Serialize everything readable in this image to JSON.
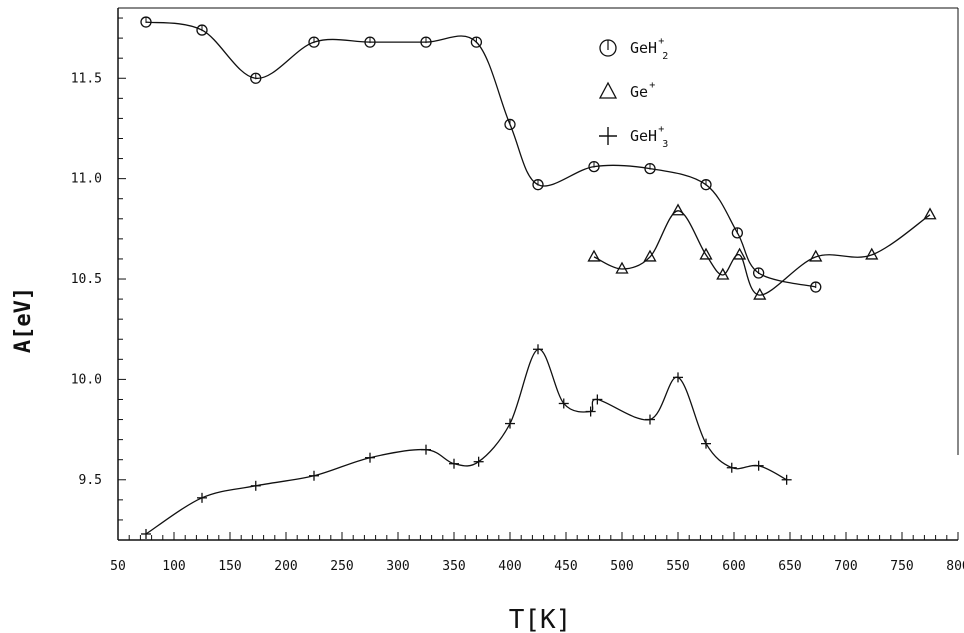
{
  "chart_data": {
    "type": "line",
    "xlabel": "T[K]",
    "ylabel": "A[eV]",
    "xlim": [
      50,
      800
    ],
    "ylim": [
      9.2,
      11.85
    ],
    "x_ticks": [
      50,
      100,
      150,
      200,
      250,
      300,
      350,
      400,
      450,
      500,
      550,
      600,
      650,
      700,
      750,
      800
    ],
    "y_ticks": [
      9.5,
      10.0,
      10.5,
      11.0,
      11.5
    ],
    "legend_position": "top-right",
    "series": [
      {
        "name": "GeH",
        "name_sup": "+",
        "name_sub": "2",
        "marker": "circle",
        "points": [
          [
            75,
            11.78
          ],
          [
            125,
            11.74
          ],
          [
            173,
            11.5
          ],
          [
            225,
            11.68
          ],
          [
            275,
            11.68
          ],
          [
            325,
            11.68
          ],
          [
            370,
            11.68
          ],
          [
            400,
            11.27
          ],
          [
            425,
            10.97
          ],
          [
            475,
            11.06
          ],
          [
            525,
            11.05
          ],
          [
            575,
            10.97
          ],
          [
            603,
            10.73
          ],
          [
            622,
            10.53
          ],
          [
            673,
            10.46
          ]
        ]
      },
      {
        "name": "Ge",
        "name_sup": "+",
        "name_sub": "",
        "marker": "triangle",
        "points": [
          [
            475,
            10.61
          ],
          [
            500,
            10.55
          ],
          [
            525,
            10.61
          ],
          [
            550,
            10.84
          ],
          [
            575,
            10.62
          ],
          [
            590,
            10.52
          ],
          [
            605,
            10.62
          ],
          [
            623,
            10.42
          ],
          [
            673,
            10.61
          ],
          [
            723,
            10.62
          ],
          [
            775,
            10.82
          ]
        ]
      },
      {
        "name": "GeH",
        "name_sup": "+",
        "name_sub": "3",
        "marker": "plus",
        "points": [
          [
            75,
            9.23
          ],
          [
            125,
            9.41
          ],
          [
            173,
            9.47
          ],
          [
            225,
            9.52
          ],
          [
            275,
            9.61
          ],
          [
            325,
            9.65
          ],
          [
            350,
            9.58
          ],
          [
            372,
            9.59
          ],
          [
            400,
            9.78
          ],
          [
            425,
            10.15
          ],
          [
            448,
            9.88
          ],
          [
            472,
            9.84
          ],
          [
            478,
            9.9
          ],
          [
            525,
            9.8
          ],
          [
            550,
            10.01
          ],
          [
            575,
            9.68
          ],
          [
            598,
            9.56
          ],
          [
            622,
            9.57
          ],
          [
            647,
            9.5
          ]
        ]
      }
    ]
  }
}
